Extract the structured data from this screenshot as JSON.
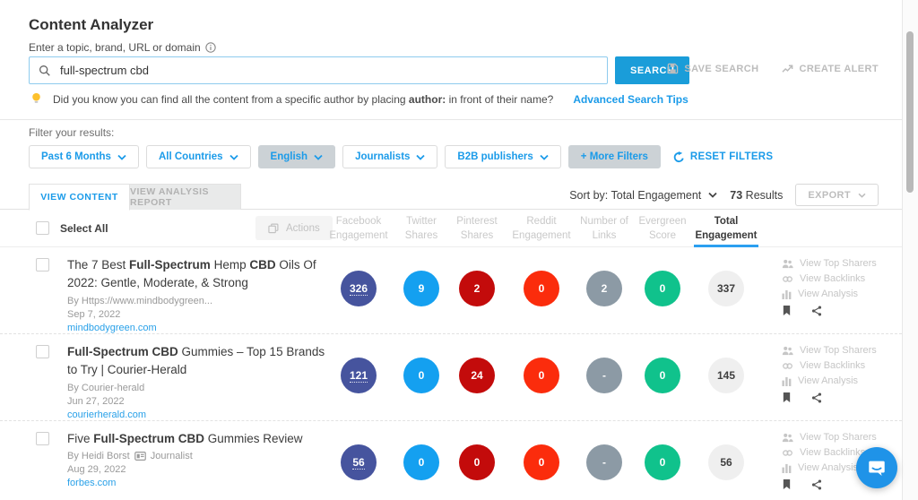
{
  "header": {
    "title": "Content Analyzer",
    "search_label": "Enter a topic, brand, URL or domain",
    "search": {
      "value": "full-spectrum cbd",
      "button": "SEARCH"
    },
    "save_search": "SAVE SEARCH",
    "create_alert": "CREATE ALERT",
    "tip": {
      "prefix": "Did you know you can find all the content from a specific author by placing",
      "bold": "author:",
      "suffix": "in front of their name?",
      "link": "Advanced Search Tips"
    }
  },
  "filters": {
    "label": "Filter your results:",
    "items": [
      {
        "label": "Past 6 Months",
        "active": false
      },
      {
        "label": "All Countries",
        "active": false
      },
      {
        "label": "English",
        "active": true
      },
      {
        "label": "Journalists",
        "active": false
      },
      {
        "label": "B2B publishers",
        "active": false
      }
    ],
    "more_filters": "+ More Filters",
    "reset": "RESET FILTERS"
  },
  "tabs": {
    "content": "VIEW CONTENT",
    "analysis": "VIEW ANALYSIS REPORT"
  },
  "sort": {
    "label": "Sort by: Total Engagement",
    "count": "73",
    "results_word": "Results",
    "export": "EXPORT"
  },
  "table": {
    "select_all": "Select All",
    "actions": "Actions",
    "columns": [
      {
        "line1": "Facebook",
        "line2": "Engagement"
      },
      {
        "line1": "Twitter",
        "line2": "Shares"
      },
      {
        "line1": "Pinterest",
        "line2": "Shares"
      },
      {
        "line1": "Reddit",
        "line2": "Engagement"
      },
      {
        "line1": "Number of",
        "line2": "Links"
      },
      {
        "line1": "Evergreen",
        "line2": "Score"
      },
      {
        "line1": "Total",
        "line2": "Engagement",
        "sorted": true
      }
    ]
  },
  "colors": {
    "accent_blue": "#1b9be9",
    "search_button_blue": "#1a9dd9",
    "sort_underline_blue": "#2b9ff0",
    "chat_bubble_blue": "#1f93e8",
    "metric_colors": [
      "#46549e",
      "#14a0f0",
      "#c30b0b",
      "#fb2c0c",
      "#8c9aa5",
      "#10c28c",
      "#efefef"
    ]
  },
  "row_actions": [
    "View Top Sharers",
    "View Backlinks",
    "View Analysis"
  ],
  "rows": [
    {
      "title_segments": [
        {
          "text": "The 7 Best "
        },
        {
          "text": "Full-Spectrum",
          "bold": true
        },
        {
          "text": " Hemp "
        },
        {
          "text": "CBD",
          "bold": true
        },
        {
          "text": " Oils Of 2022: Gentle, Moderate, & Strong"
        }
      ],
      "byline": "By  Https://www.mindbodygreen...",
      "badge": null,
      "date": "Sep 7, 2022",
      "domain": "mindbodygreen.com",
      "metrics": [
        {
          "value": "326",
          "underline": true
        },
        {
          "value": "9"
        },
        {
          "value": "2"
        },
        {
          "value": "0"
        },
        {
          "value": "2"
        },
        {
          "value": "0"
        },
        {
          "value": "337"
        }
      ]
    },
    {
      "title_segments": [
        {
          "text": "Full-Spectrum CBD",
          "bold": true
        },
        {
          "text": " Gummies – Top 15 Brands to Try | Courier-Herald"
        }
      ],
      "byline": "By  Courier-herald",
      "badge": null,
      "date": "Jun 27, 2022",
      "domain": "courierherald.com",
      "metrics": [
        {
          "value": "121",
          "underline": true
        },
        {
          "value": "0"
        },
        {
          "value": "24"
        },
        {
          "value": "0"
        },
        {
          "value": "-"
        },
        {
          "value": "0"
        },
        {
          "value": "145"
        }
      ]
    },
    {
      "title_segments": [
        {
          "text": "Five "
        },
        {
          "text": "Full-Spectrum CBD",
          "bold": true
        },
        {
          "text": " Gummies Review"
        }
      ],
      "byline": "By Heidi Borst",
      "badge": "Journalist",
      "date": "Aug 29, 2022",
      "domain": "forbes.com",
      "metrics": [
        {
          "value": "56",
          "underline": true
        },
        {
          "value": "0"
        },
        {
          "value": "0"
        },
        {
          "value": "0"
        },
        {
          "value": "-"
        },
        {
          "value": "0"
        },
        {
          "value": "56"
        }
      ]
    }
  ]
}
